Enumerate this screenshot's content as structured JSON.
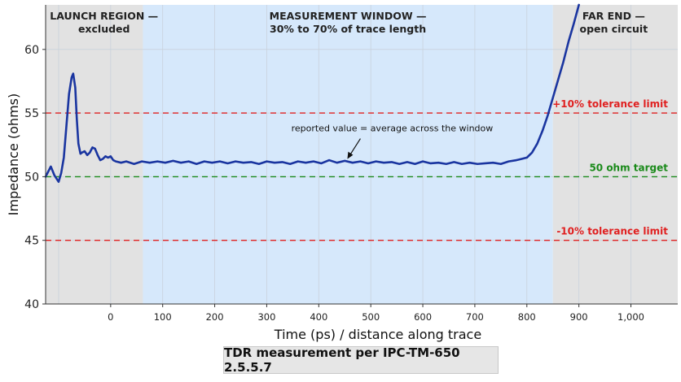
{
  "chart_data": {
    "type": "line",
    "xlabel": "Time (ps) / distance along trace",
    "ylabel": "Impedance (ohms)",
    "xlim": [
      -125,
      1090
    ],
    "ylim": [
      40,
      63.5
    ],
    "xticks": [
      0,
      100,
      200,
      300,
      400,
      500,
      600,
      700,
      800,
      900,
      1000
    ],
    "xtick_labels": [
      "0",
      "100",
      "200",
      "300",
      "400",
      "500",
      "600",
      "700",
      "800",
      "900",
      "1,000"
    ],
    "yticks": [
      40,
      45,
      50,
      55,
      60
    ],
    "grid": true,
    "regions": [
      {
        "name": "launch",
        "x_start": -125,
        "x_end": 62,
        "color": "#e2e2e2",
        "label_line1": "LAUNCH REGION —",
        "label_line2": "excluded"
      },
      {
        "name": "measurement",
        "x_start": 62,
        "x_end": 850,
        "color": "#d6e8fb",
        "label_line1": "MEASUREMENT WINDOW —",
        "label_line2": "30% to 70% of trace length"
      },
      {
        "name": "far-end",
        "x_start": 850,
        "x_end": 1090,
        "color": "#e2e2e2",
        "label_line1": "FAR END —",
        "label_line2": "open circuit"
      }
    ],
    "reference_lines": [
      {
        "name": "upper-tolerance",
        "y": 55,
        "color": "#e02020",
        "label": "+10% tolerance limit"
      },
      {
        "name": "target",
        "y": 50,
        "color": "#1a8a1a",
        "label": "50 ohm target"
      },
      {
        "name": "lower-tolerance",
        "y": 45,
        "color": "#e02020",
        "label": "-10% tolerance limit"
      }
    ],
    "annotation": {
      "text": "reported value = average across the window",
      "x": 455,
      "y": 51.2
    },
    "series": [
      {
        "color": "#1a35a0",
        "x": [
          -125,
          -115,
          -108,
          -100,
          -95,
          -90,
          -85,
          -80,
          -75,
          -72,
          -68,
          -65,
          -62,
          -58,
          -55,
          -50,
          -45,
          -40,
          -35,
          -30,
          -25,
          -20,
          -15,
          -10,
          -5,
          0,
          5,
          10,
          20,
          30,
          45,
          60,
          75,
          90,
          105,
          120,
          135,
          150,
          165,
          180,
          195,
          210,
          225,
          240,
          255,
          270,
          285,
          300,
          315,
          330,
          345,
          360,
          375,
          390,
          405,
          420,
          435,
          450,
          465,
          480,
          495,
          510,
          525,
          540,
          555,
          570,
          585,
          600,
          615,
          630,
          645,
          660,
          675,
          690,
          705,
          720,
          735,
          750,
          765,
          780,
          790,
          800,
          810,
          820,
          830,
          840,
          850,
          860,
          870,
          880,
          890,
          900
        ],
        "y": [
          50.0,
          50.8,
          50.1,
          49.6,
          50.3,
          51.5,
          54.0,
          56.5,
          57.8,
          58.1,
          57.0,
          54.5,
          52.6,
          51.8,
          51.9,
          52.0,
          51.7,
          51.9,
          52.3,
          52.2,
          51.7,
          51.3,
          51.4,
          51.6,
          51.5,
          51.6,
          51.3,
          51.2,
          51.1,
          51.2,
          51.0,
          51.2,
          51.1,
          51.2,
          51.1,
          51.25,
          51.1,
          51.2,
          51.0,
          51.2,
          51.1,
          51.2,
          51.05,
          51.2,
          51.1,
          51.15,
          51.0,
          51.2,
          51.1,
          51.15,
          51.0,
          51.2,
          51.1,
          51.2,
          51.05,
          51.3,
          51.1,
          51.25,
          51.1,
          51.2,
          51.05,
          51.2,
          51.1,
          51.15,
          51.0,
          51.15,
          51.0,
          51.2,
          51.05,
          51.1,
          51.0,
          51.15,
          51.0,
          51.1,
          51.0,
          51.05,
          51.1,
          51.0,
          51.2,
          51.3,
          51.4,
          51.5,
          51.9,
          52.6,
          53.6,
          54.8,
          56.2,
          57.6,
          59.0,
          60.6,
          62.0,
          63.5
        ]
      }
    ]
  },
  "caption": "TDR measurement per IPC-TM-650 2.5.5.7"
}
